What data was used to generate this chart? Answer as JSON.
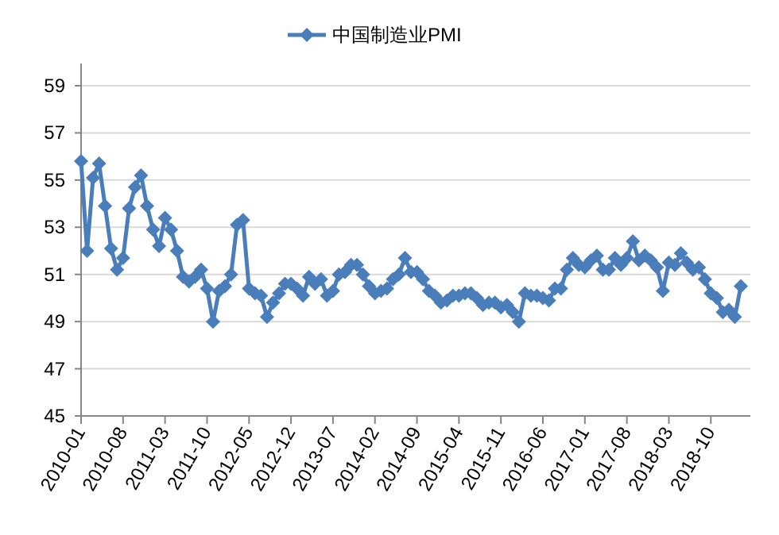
{
  "chart_data": {
    "type": "line",
    "categories": [
      "2010-01",
      null,
      null,
      null,
      null,
      null,
      null,
      "2010-08",
      null,
      null,
      null,
      null,
      null,
      null,
      "2011-03",
      null,
      null,
      null,
      null,
      null,
      null,
      "2011-10",
      null,
      null,
      null,
      null,
      null,
      null,
      "2012-05",
      null,
      null,
      null,
      null,
      null,
      null,
      "2012-12",
      null,
      null,
      null,
      null,
      null,
      null,
      "2013-07",
      null,
      null,
      null,
      null,
      null,
      null,
      "2014-02",
      null,
      null,
      null,
      null,
      null,
      null,
      "2014-09",
      null,
      null,
      null,
      null,
      null,
      null,
      "2015-04",
      null,
      null,
      null,
      null,
      null,
      null,
      "2015-11",
      null,
      null,
      null,
      null,
      null,
      null,
      "2016-06",
      null,
      null,
      null,
      null,
      null,
      null,
      "2017-01",
      null,
      null,
      null,
      null,
      null,
      null,
      "2017-08",
      null,
      null,
      null,
      null,
      null,
      null,
      "2018-03",
      null,
      null,
      null,
      null,
      null,
      null,
      "2018-10",
      null,
      null,
      null,
      null,
      null
    ],
    "series": [
      {
        "name": "中国制造业PMI",
        "color": "#4a7ebb",
        "values": [
          55.8,
          52.0,
          55.1,
          55.7,
          53.9,
          52.1,
          51.2,
          51.7,
          53.8,
          54.7,
          55.2,
          53.9,
          52.9,
          52.2,
          53.4,
          52.9,
          52.0,
          50.9,
          50.7,
          50.9,
          51.2,
          50.4,
          49.0,
          50.3,
          50.5,
          51.0,
          53.1,
          53.3,
          50.4,
          50.2,
          50.1,
          49.2,
          49.8,
          50.2,
          50.6,
          50.6,
          50.4,
          50.1,
          50.9,
          50.6,
          50.8,
          50.1,
          50.3,
          51.0,
          51.1,
          51.4,
          51.4,
          51.0,
          50.5,
          50.2,
          50.3,
          50.4,
          50.8,
          51.0,
          51.7,
          51.1,
          51.1,
          50.8,
          50.3,
          50.1,
          49.8,
          49.9,
          50.1,
          50.1,
          50.2,
          50.2,
          50.0,
          49.7,
          49.8,
          49.8,
          49.6,
          49.7,
          49.4,
          49.0,
          50.2,
          50.1,
          50.1,
          50.0,
          49.9,
          50.4,
          50.4,
          51.2,
          51.7,
          51.4,
          51.3,
          51.6,
          51.8,
          51.2,
          51.2,
          51.7,
          51.4,
          51.7,
          52.4,
          51.6,
          51.8,
          51.6,
          51.3,
          50.3,
          51.5,
          51.4,
          51.9,
          51.5,
          51.2,
          51.3,
          50.8,
          50.2,
          50.0,
          49.4,
          49.5,
          49.2,
          50.5
        ]
      }
    ],
    "ylim": [
      45,
      59
    ],
    "yticks": [
      45,
      47,
      49,
      51,
      53,
      55,
      57,
      59
    ],
    "grid": "y",
    "legend": "top",
    "marker": "diamond",
    "line_style": "solid"
  }
}
